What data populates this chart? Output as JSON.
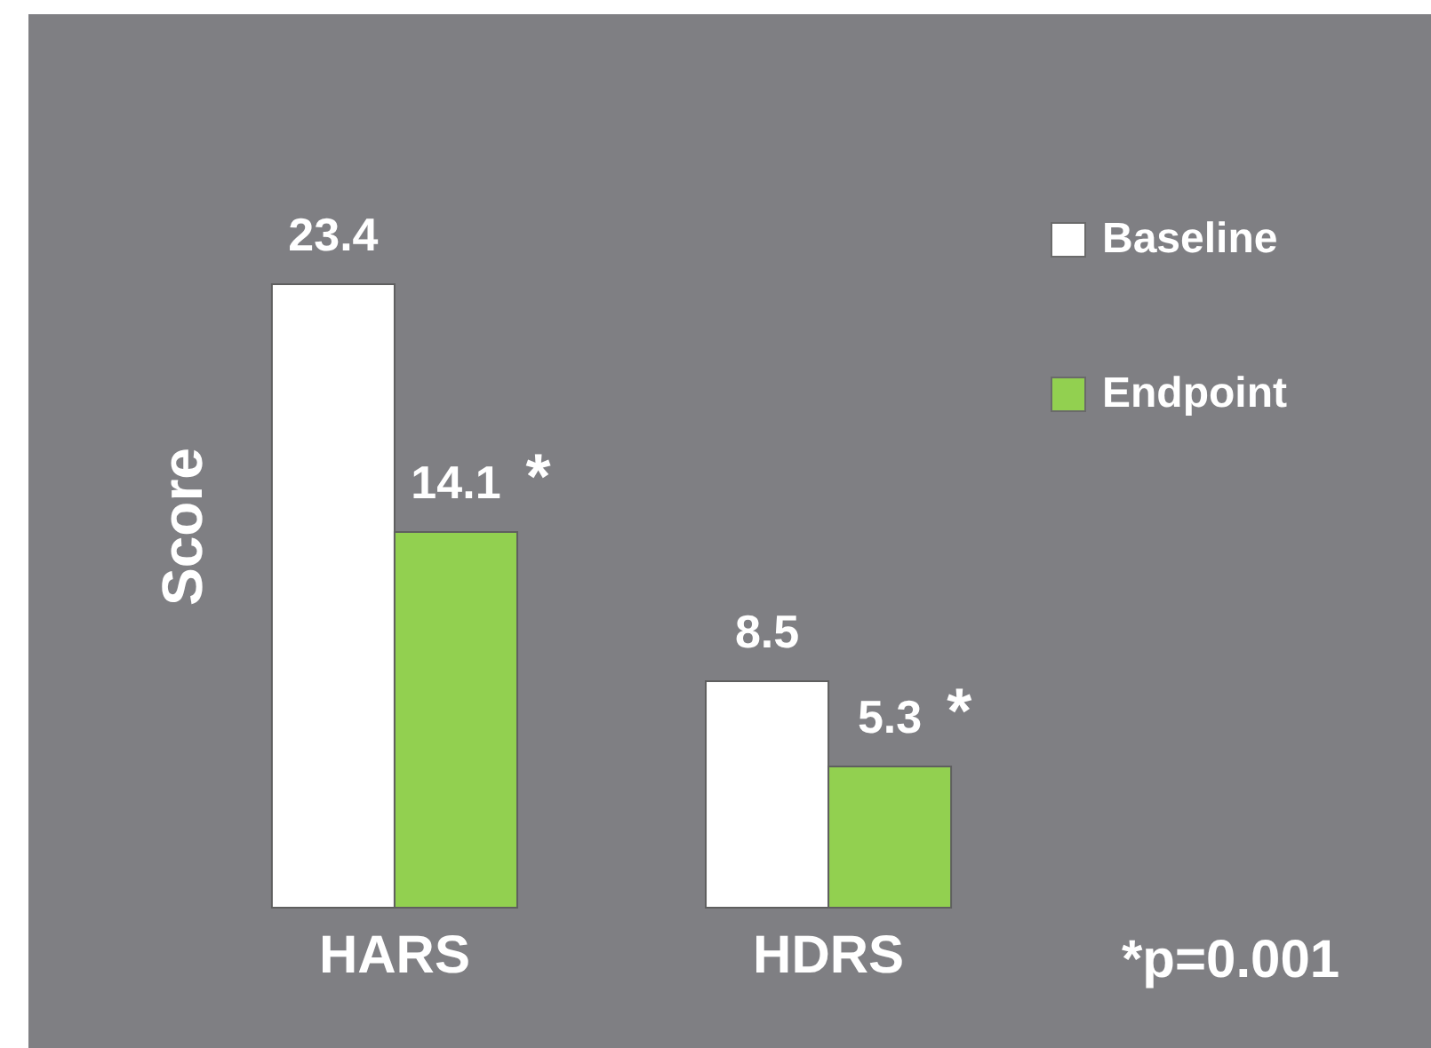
{
  "chart_data": {
    "type": "bar",
    "ylabel": "Score",
    "categories": [
      "HARS",
      "HDRS"
    ],
    "series": [
      {
        "name": "Baseline",
        "color": "#ffffff",
        "values": [
          23.4,
          8.5
        ]
      },
      {
        "name": "Endpoint",
        "color": "#92d050",
        "values": [
          14.1,
          5.3
        ]
      }
    ],
    "data_labels": true,
    "legend": "top right",
    "tick_labels": "x",
    "annotations": [
      {
        "text": "*",
        "x": "HARS",
        "y": 14.1
      },
      {
        "text": "*",
        "x": "HDRS",
        "y": 5.3
      },
      "*p=0.001"
    ]
  }
}
